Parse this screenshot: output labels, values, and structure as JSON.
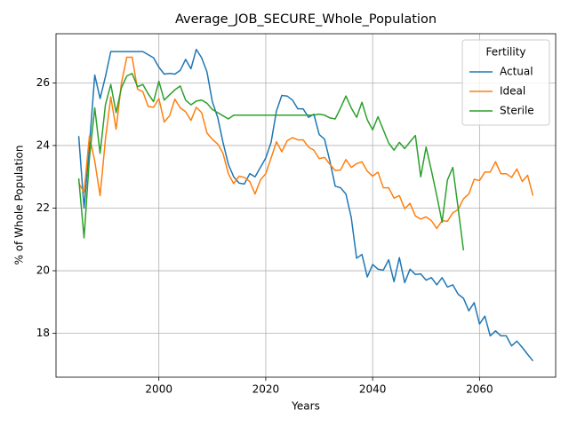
{
  "chart_data": {
    "type": "line",
    "title": "Average_JOB_SECURE_Whole_Population",
    "xlabel": "Years",
    "ylabel": "% of Whole Population",
    "legend_title": "Fertility",
    "legend": "upper right",
    "grid": true,
    "xlim": [
      1980.75,
      2074.25
    ],
    "xticks": [
      2000,
      2020,
      2040,
      2060
    ],
    "ylim": [
      16.6,
      27.57
    ],
    "yticks": [
      18,
      20,
      22,
      24,
      26
    ],
    "x": [
      1985,
      1986,
      1987,
      1988,
      1989,
      1990,
      1991,
      1992,
      1993,
      1994,
      1995,
      1996,
      1997,
      1998,
      1999,
      2000,
      2001,
      2002,
      2003,
      2004,
      2005,
      2006,
      2007,
      2008,
      2009,
      2010,
      2011,
      2012,
      2013,
      2014,
      2015,
      2016,
      2017,
      2018,
      2019,
      2020,
      2021,
      2022,
      2023,
      2024,
      2025,
      2026,
      2027,
      2028,
      2029,
      2030,
      2031,
      2032,
      2033,
      2034,
      2035,
      2036,
      2037,
      2038,
      2039,
      2040,
      2041,
      2042,
      2043,
      2044,
      2045,
      2046,
      2047,
      2048,
      2049,
      2050,
      2051,
      2052,
      2053,
      2054,
      2055,
      2056,
      2057,
      2058,
      2059,
      2060,
      2061,
      2062,
      2063,
      2064,
      2065,
      2066,
      2067,
      2068,
      2069,
      2070
    ],
    "series": [
      {
        "name": "Actual",
        "color": "#1f77b4",
        "values": [
          24.3,
          22.0,
          24.0,
          26.25,
          25.5,
          26.2,
          27.0,
          27.0,
          27.0,
          27.0,
          27.0,
          27.0,
          27.0,
          26.9,
          26.8,
          26.5,
          26.28,
          26.3,
          26.28,
          26.4,
          26.75,
          26.45,
          27.07,
          26.8,
          26.35,
          25.4,
          24.9,
          24.1,
          23.4,
          23.0,
          22.8,
          22.77,
          23.1,
          23.0,
          23.3,
          23.6,
          24.1,
          25.1,
          25.6,
          25.58,
          25.45,
          25.17,
          25.17,
          24.9,
          25.0,
          24.35,
          24.2,
          23.5,
          22.7,
          22.65,
          22.45,
          21.7,
          20.4,
          20.52,
          19.8,
          20.2,
          20.05,
          20.02,
          20.35,
          19.65,
          20.42,
          19.62,
          20.05,
          19.88,
          19.9,
          19.7,
          19.78,
          19.55,
          19.78,
          19.48,
          19.55,
          19.25,
          19.12,
          18.72,
          18.98,
          18.3,
          18.55,
          17.92,
          18.08,
          17.92,
          17.92,
          17.6,
          17.75,
          17.55,
          17.33,
          17.12
        ]
      },
      {
        "name": "Ideal",
        "color": "#ff7f0e",
        "values": [
          22.8,
          22.5,
          24.3,
          23.5,
          22.4,
          24.2,
          25.55,
          24.52,
          26.0,
          26.82,
          26.82,
          25.8,
          25.72,
          25.25,
          25.22,
          25.5,
          24.75,
          24.95,
          25.48,
          25.2,
          25.08,
          24.8,
          25.22,
          25.05,
          24.4,
          24.2,
          24.05,
          23.75,
          23.1,
          22.78,
          23.02,
          22.98,
          22.85,
          22.45,
          22.9,
          23.1,
          23.6,
          24.12,
          23.8,
          24.15,
          24.25,
          24.18,
          24.18,
          23.95,
          23.85,
          23.58,
          23.62,
          23.4,
          23.2,
          23.22,
          23.55,
          23.3,
          23.42,
          23.48,
          23.18,
          23.02,
          23.15,
          22.65,
          22.65,
          22.32,
          22.4,
          21.98,
          22.15,
          21.75,
          21.65,
          21.72,
          21.6,
          21.35,
          21.6,
          21.58,
          21.85,
          21.95,
          22.3,
          22.45,
          22.92,
          22.88,
          23.15,
          23.15,
          23.48,
          23.1,
          23.1,
          22.98,
          23.25,
          22.85,
          23.05,
          22.4
        ]
      },
      {
        "name": "Sterile",
        "color": "#2ca02c",
        "values": [
          22.95,
          21.05,
          23.6,
          25.2,
          23.75,
          25.3,
          25.95,
          25.05,
          25.85,
          26.22,
          26.3,
          25.88,
          25.95,
          25.65,
          25.4,
          26.05,
          25.45,
          25.62,
          25.78,
          25.9,
          25.45,
          25.3,
          25.42,
          25.45,
          25.35,
          25.15,
          25.05,
          24.95,
          24.85,
          24.97,
          24.97,
          24.97,
          24.97,
          24.97,
          24.97,
          24.97,
          24.97,
          24.97,
          24.97,
          24.97,
          24.97,
          24.97,
          24.97,
          24.97,
          24.97,
          25.0,
          24.97,
          24.88,
          24.85,
          25.2,
          25.58,
          25.2,
          24.9,
          25.38,
          24.82,
          24.5,
          24.92,
          24.5,
          24.08,
          23.85,
          24.1,
          23.9,
          24.12,
          24.32,
          23.0,
          23.95,
          23.2,
          22.4,
          21.55,
          22.9,
          23.3,
          22.0,
          20.65,
          null,
          null,
          null,
          null,
          null,
          null,
          null,
          null,
          null,
          null,
          null,
          null,
          null
        ]
      }
    ]
  }
}
